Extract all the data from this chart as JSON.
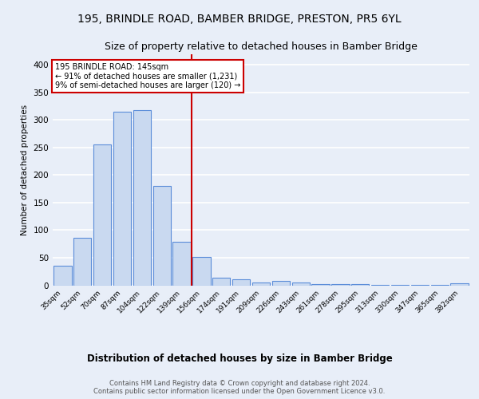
{
  "title1": "195, BRINDLE ROAD, BAMBER BRIDGE, PRESTON, PR5 6YL",
  "title2": "Size of property relative to detached houses in Bamber Bridge",
  "xlabel": "Distribution of detached houses by size in Bamber Bridge",
  "ylabel": "Number of detached properties",
  "footer1": "Contains HM Land Registry data © Crown copyright and database right 2024.",
  "footer2": "Contains public sector information licensed under the Open Government Licence v3.0.",
  "categories": [
    "35sqm",
    "52sqm",
    "70sqm",
    "87sqm",
    "104sqm",
    "122sqm",
    "139sqm",
    "156sqm",
    "174sqm",
    "191sqm",
    "209sqm",
    "226sqm",
    "243sqm",
    "261sqm",
    "278sqm",
    "295sqm",
    "313sqm",
    "330sqm",
    "347sqm",
    "365sqm",
    "382sqm"
  ],
  "values": [
    35,
    86,
    255,
    315,
    318,
    181,
    79,
    51,
    14,
    11,
    5,
    8,
    5,
    2,
    2,
    2,
    1,
    1,
    1,
    1,
    3
  ],
  "bar_color": "#c9d9f0",
  "bar_edge_color": "#5b8dd9",
  "annotation_text_line1": "195 BRINDLE ROAD: 145sqm",
  "annotation_text_line2": "← 91% of detached houses are smaller (1,231)",
  "annotation_text_line3": "9% of semi-detached houses are larger (120) →",
  "annotation_box_color": "#ffffff",
  "annotation_border_color": "#cc0000",
  "vline_color": "#cc0000",
  "vline_x": 6.5,
  "ylim": [
    0,
    420
  ],
  "yticks": [
    0,
    50,
    100,
    150,
    200,
    250,
    300,
    350,
    400
  ],
  "bg_color": "#e8eef8",
  "plot_bg_color": "#e8eef8",
  "grid_color": "#ffffff",
  "title_fontsize": 10,
  "subtitle_fontsize": 9
}
